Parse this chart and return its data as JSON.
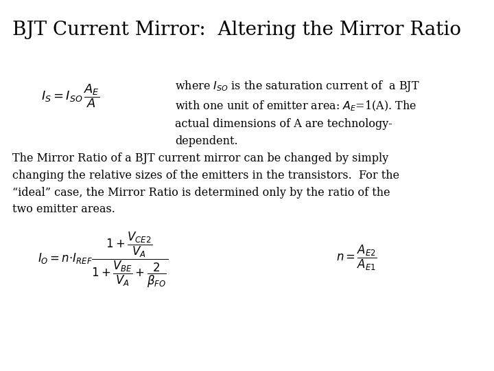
{
  "title": "BJT Current Mirror:  Altering the Mirror Ratio",
  "background_color": "#ffffff",
  "text_color": "#000000",
  "title_fontsize": 20,
  "body_fontsize": 11.5,
  "formula1_fontsize": 13,
  "formula2_fontsize": 12,
  "where_text": "where $I_{SO}$ is the saturation current of  a BJT\nwith one unit of emitter area: $A_E$=1(A). The\nactual dimensions of A are technology-\ndependent.",
  "body_text": "The Mirror Ratio of a BJT current mirror can be changed by simply\nchanging the relative sizes of the emitters in the transistors.  For the\n“ideal” case, the Mirror Ratio is determined only by the ratio of the\ntwo emitter areas."
}
